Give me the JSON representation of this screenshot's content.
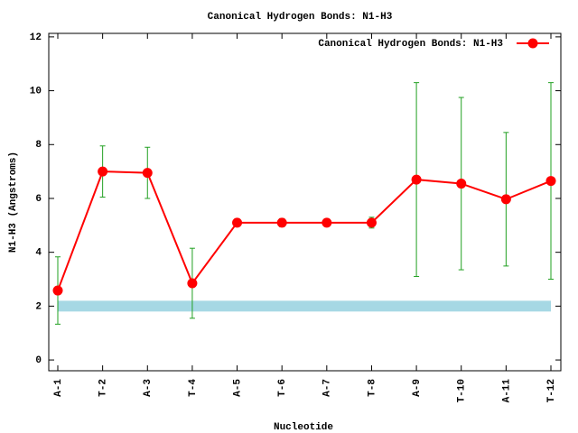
{
  "chart_data": {
    "type": "line",
    "title": "Canonical Hydrogen Bonds: N1-H3",
    "xlabel": "Nucleotide",
    "ylabel": "N1-H3 (Angstroms)",
    "categories": [
      "A-1",
      "T-2",
      "A-3",
      "T-4",
      "A-5",
      "T-6",
      "A-7",
      "T-8",
      "A-9",
      "T-10",
      "A-11",
      "T-12"
    ],
    "series": [
      {
        "name": "Canonical Hydrogen Bonds: N1-H3",
        "color": "#ff0000",
        "error_color": "#22a022",
        "values": [
          2.58,
          7.0,
          6.95,
          2.85,
          5.1,
          5.1,
          5.1,
          5.1,
          6.7,
          6.55,
          5.97,
          6.65
        ],
        "errors": [
          1.25,
          0.95,
          0.95,
          1.3,
          0.1,
          0.15,
          0.1,
          0.2,
          3.6,
          3.2,
          2.48,
          3.65
        ]
      }
    ],
    "band": [
      1.8,
      2.2
    ],
    "band_color": "#a6d8e4",
    "ylim": [
      -0.4,
      12.13
    ],
    "yticks": [
      0,
      2,
      4,
      6,
      8,
      10,
      12
    ],
    "legend": "top-right"
  }
}
